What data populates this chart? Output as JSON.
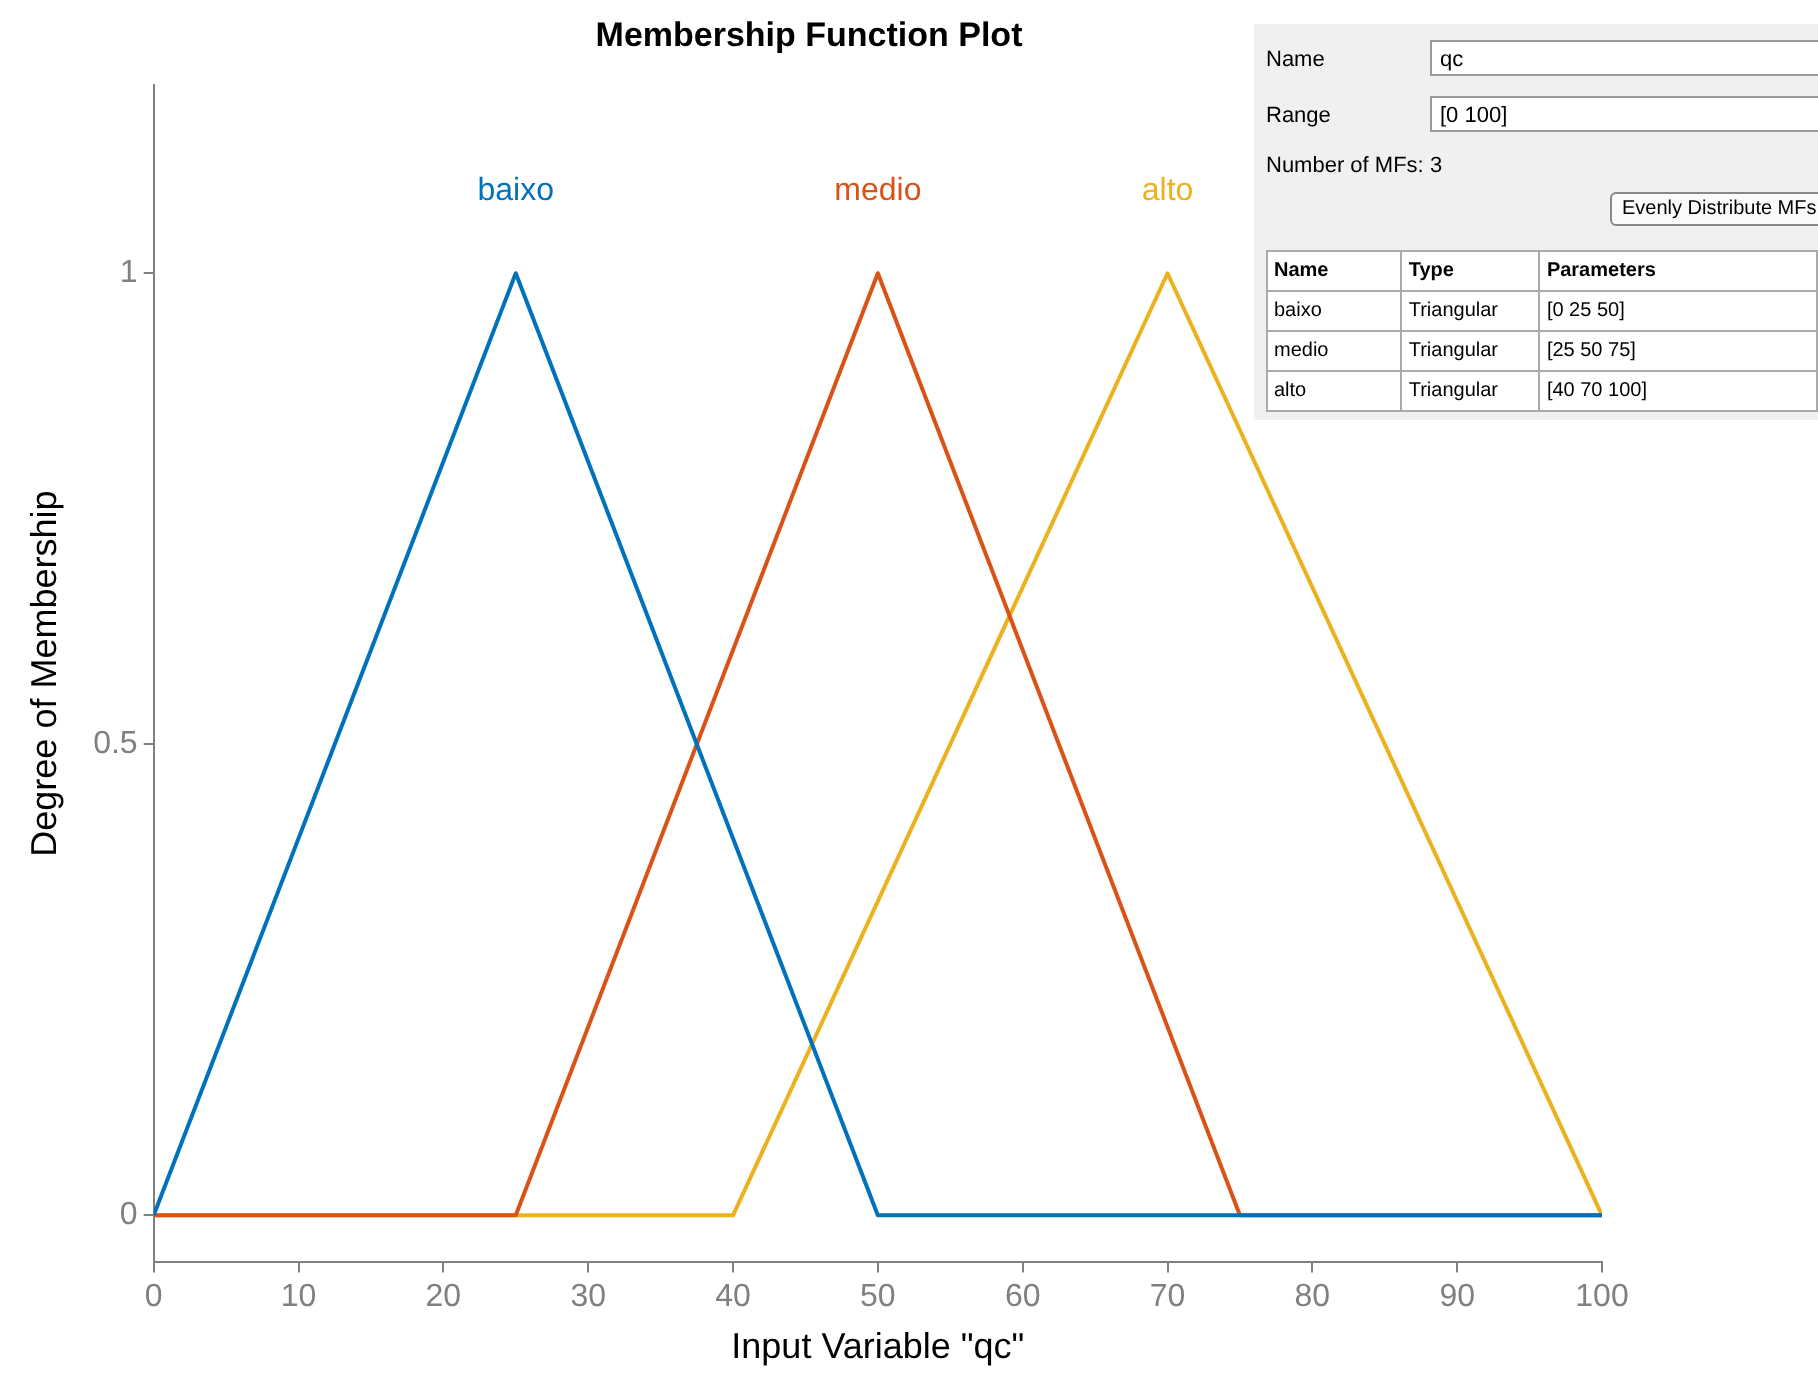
{
  "chart_data": {
    "type": "line",
    "title": "Membership Function Plot",
    "xlabel": "Input Variable \"qc\"",
    "ylabel": "Degree of Membership",
    "xlim": [
      0,
      100
    ],
    "xticks": [
      0,
      10,
      20,
      30,
      40,
      50,
      60,
      70,
      80,
      90,
      100
    ],
    "ylim": [
      -0.05,
      1.2
    ],
    "yticks": [
      0,
      0.5,
      1
    ],
    "grid": false,
    "legend": false,
    "marker": "none",
    "line_style": "solid",
    "series": [
      {
        "name": "baixo",
        "color": "#0072bd",
        "x": [
          0,
          25,
          50,
          100
        ],
        "values": [
          0,
          1,
          0,
          0
        ]
      },
      {
        "name": "medio",
        "color": "#d95319",
        "x": [
          0,
          25,
          50,
          75,
          100
        ],
        "values": [
          0,
          0,
          1,
          0,
          0
        ]
      },
      {
        "name": "alto",
        "color": "#edb120",
        "x": [
          0,
          40,
          70,
          100
        ],
        "values": [
          0,
          0,
          1,
          0
        ]
      }
    ],
    "annotations": [
      "Name",
      "qc",
      "Range",
      "[0 100]",
      "Number of MFs:",
      "3",
      "Evenly Distribute MFs",
      "Name",
      "Type",
      "Parameters",
      "baixo",
      "Triangular",
      "[0 25 50]",
      "medio",
      "Triangular",
      "[25 50 75]",
      "alto",
      "Triangular",
      "[40 70 100]"
    ]
  }
}
